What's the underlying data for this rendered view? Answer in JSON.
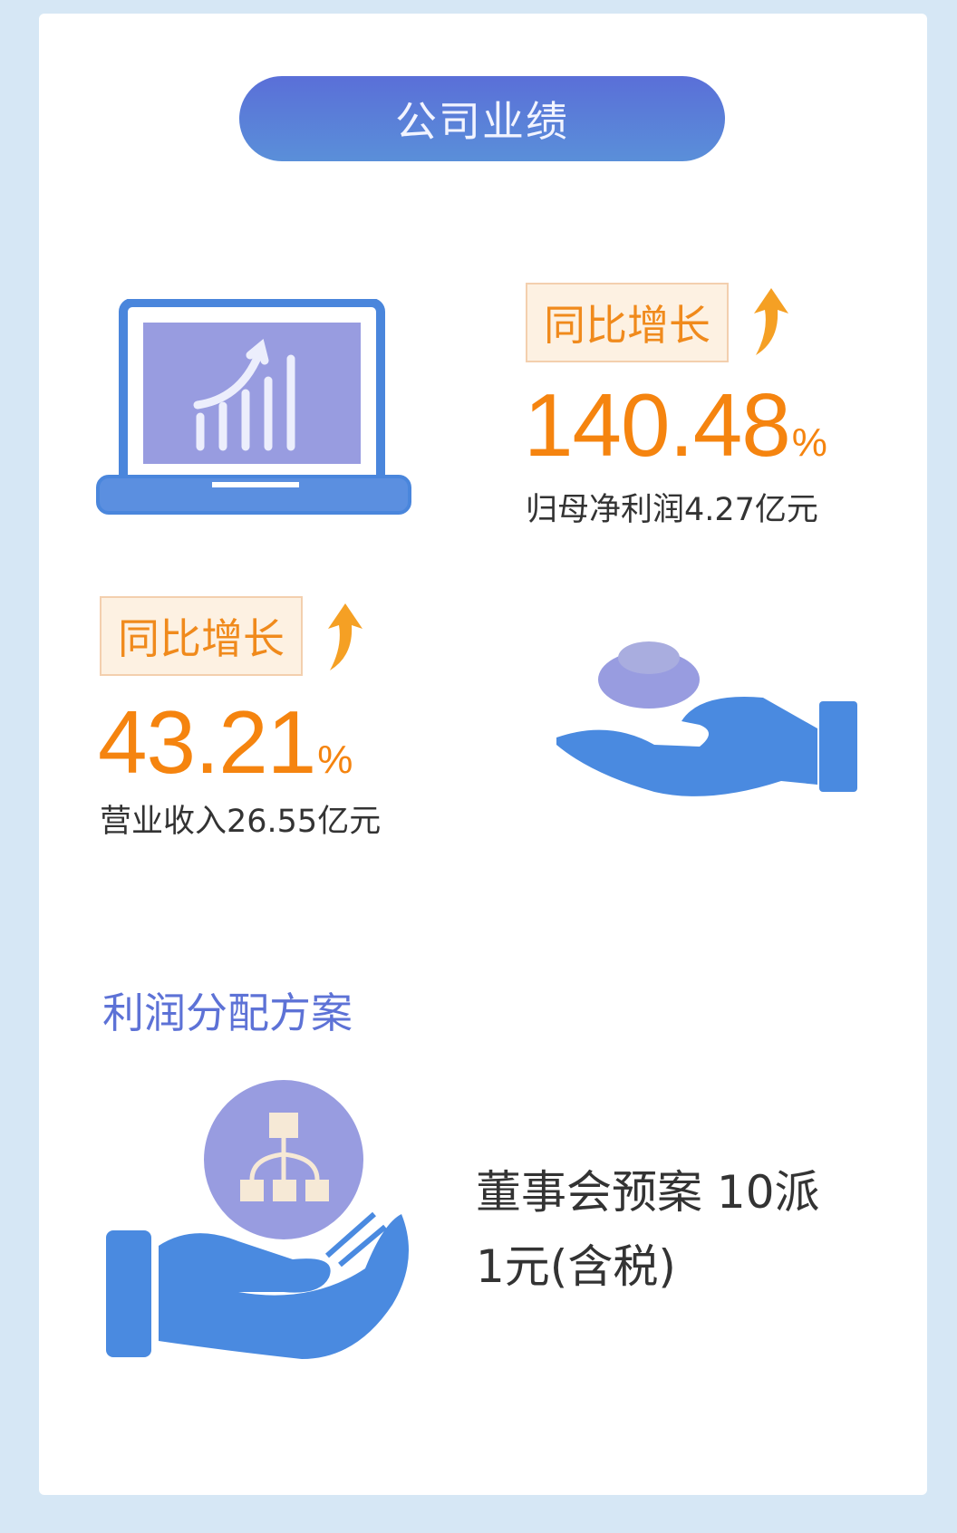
{
  "header": {
    "title": "公司业绩"
  },
  "metrics": [
    {
      "tag": "同比增长",
      "value": "140.48",
      "unit": "%",
      "caption": "归母净利润4.27亿元",
      "icon": "laptop-chart-icon"
    },
    {
      "tag": "同比增长",
      "value": "43.21",
      "unit": "%",
      "caption": "营业收入26.55亿元",
      "icon": "hand-ingot-icon"
    }
  ],
  "distribution": {
    "title": "利润分配方案",
    "line1": "董事会预案 10派",
    "line2": "1元(含税)",
    "icon": "hand-hierarchy-icon"
  },
  "colors": {
    "accent": "#f5840f",
    "title_blue": "#5d72d6",
    "icon_blue": "#4a8ae0",
    "icon_purple": "#989ce0",
    "background": "#d6e7f5"
  }
}
